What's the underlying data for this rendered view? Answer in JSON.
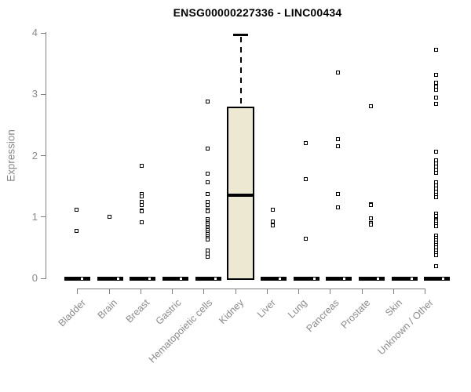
{
  "chart_data": {
    "type": "boxplot",
    "title": "ENSG00000227336 - LINC00434",
    "ylabel": "Expression",
    "xlabel": "",
    "ylim": [
      0,
      4
    ],
    "yticks": [
      0,
      1,
      2,
      3,
      4
    ],
    "grid": false,
    "legend": null,
    "categories": [
      "Bladder",
      "Brain",
      "Breast",
      "Gastric",
      "Hematopoietic cells",
      "Kidney",
      "Liver",
      "Lung",
      "Pancreas",
      "Prostate",
      "Skin",
      "Unknown / Other"
    ],
    "series": [
      {
        "category": "Bladder",
        "zero_bar": true,
        "zero_point_offset": 6,
        "points": [
          1.12,
          0.77
        ]
      },
      {
        "category": "Brain",
        "zero_bar": true,
        "zero_point_offset": 10,
        "points": [
          1.0
        ]
      },
      {
        "category": "Breast",
        "zero_bar": true,
        "zero_point_offset": 9,
        "points": [
          1.83,
          1.37,
          1.33,
          1.24,
          1.2,
          1.11,
          1.09,
          0.92
        ]
      },
      {
        "category": "Gastric",
        "zero_bar": true,
        "zero_point_offset": 7,
        "points": []
      },
      {
        "category": "Hematopoietic cells",
        "zero_bar": true,
        "zero_point_offset": 9,
        "points": [
          2.88,
          2.11,
          1.7,
          1.57,
          1.37,
          1.24,
          1.19,
          1.12,
          1.09,
          0.96,
          0.93,
          0.9,
          0.87,
          0.84,
          0.81,
          0.78,
          0.75,
          0.72,
          0.69,
          0.66,
          0.63,
          0.45,
          0.4,
          0.35
        ]
      },
      {
        "category": "Kidney",
        "zero_bar": false,
        "zero_point_offset": null,
        "points": [],
        "box": {
          "whisker_high": 3.97,
          "q3": 2.8,
          "median": 1.36,
          "q1": 0,
          "whisker_low": 0
        }
      },
      {
        "category": "Liver",
        "zero_bar": true,
        "zero_point_offset": 8,
        "points": [
          1.12,
          0.93,
          0.86
        ]
      },
      {
        "category": "Lung",
        "zero_bar": true,
        "zero_point_offset": 10,
        "points": [
          2.2,
          1.62,
          0.64
        ]
      },
      {
        "category": "Pancreas",
        "zero_bar": true,
        "zero_point_offset": 7,
        "points": [
          3.35,
          2.27,
          2.15,
          1.37,
          1.16
        ]
      },
      {
        "category": "Prostate",
        "zero_bar": true,
        "zero_point_offset": 8,
        "points": [
          2.8,
          1.21,
          1.19,
          0.98,
          0.9,
          0.88
        ]
      },
      {
        "category": "Skin",
        "zero_bar": true,
        "zero_point_offset": 9,
        "points": []
      },
      {
        "category": "Unknown / Other",
        "zero_bar": true,
        "zero_point_offset": 8,
        "points": [
          3.72,
          3.31,
          3.19,
          3.13,
          3.07,
          2.95,
          2.84,
          2.07,
          1.92,
          1.87,
          1.82,
          1.77,
          1.72,
          1.56,
          1.51,
          1.46,
          1.41,
          1.36,
          1.32,
          1.06,
          1.01,
          0.97,
          0.95,
          0.93,
          0.89,
          0.85,
          0.7,
          0.66,
          0.62,
          0.58,
          0.54,
          0.5,
          0.46,
          0.42,
          0.38,
          0.2
        ]
      }
    ],
    "colors": {
      "box_fill": "#EDE8D1",
      "box_border": "#000000",
      "median": "#000000",
      "point_fill": "#FFFFFF",
      "point_border": "#000000",
      "axis": "#808080",
      "label_text": "#8A8A8A",
      "title_text": "#000000"
    }
  }
}
